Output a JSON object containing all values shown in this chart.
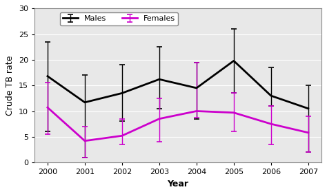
{
  "years": [
    2000,
    2001,
    2002,
    2003,
    2004,
    2005,
    2006,
    2007
  ],
  "males_mean": [
    16.8,
    11.7,
    13.5,
    16.2,
    14.5,
    19.8,
    13.0,
    10.5
  ],
  "males_upper": [
    23.5,
    17.0,
    19.0,
    22.5,
    19.5,
    26.0,
    18.5,
    15.0
  ],
  "males_lower": [
    6.0,
    1.0,
    8.0,
    10.5,
    8.5,
    13.5,
    11.0,
    2.0
  ],
  "females_mean": [
    10.7,
    4.2,
    5.2,
    8.5,
    10.0,
    9.7,
    7.5,
    5.8
  ],
  "females_upper": [
    15.5,
    7.0,
    8.5,
    12.5,
    19.5,
    13.5,
    11.0,
    9.0
  ],
  "females_lower": [
    5.5,
    1.0,
    3.5,
    4.0,
    8.7,
    6.0,
    3.5,
    2.0
  ],
  "males_color": "#000000",
  "females_color": "#cc00cc",
  "xlabel": "Year",
  "ylabel": "Crude TB rate",
  "ylim": [
    0.0,
    30.0
  ],
  "yticks": [
    0.0,
    5.0,
    10.0,
    15.0,
    20.0,
    25.0,
    30.0
  ],
  "plot_bg_color": "#e8e8e8",
  "background_color": "#ffffff",
  "legend_labels": [
    "Males",
    "Females"
  ],
  "line_width": 2.0,
  "cap_size": 3,
  "cap_thick": 1.2,
  "grid_color": "#ffffff",
  "grid_linewidth": 0.8
}
